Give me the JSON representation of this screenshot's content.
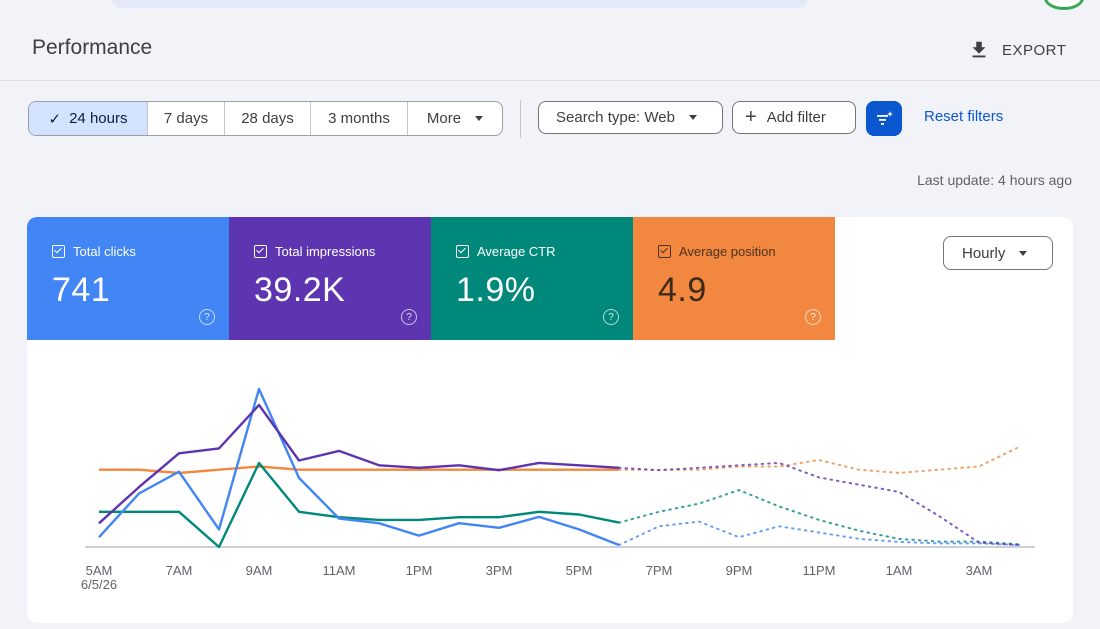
{
  "header": {
    "title": "Performance",
    "export_label": "EXPORT"
  },
  "date_ranges": [
    {
      "label": "24 hours",
      "active": true
    },
    {
      "label": "7 days",
      "active": false
    },
    {
      "label": "28 days",
      "active": false
    },
    {
      "label": "3 months",
      "active": false
    },
    {
      "label": "More",
      "active": false
    }
  ],
  "search_type_label": "Search type: Web",
  "add_filter_label": "Add filter",
  "reset_filters_label": "Reset filters",
  "last_update": "Last update: 4 hours ago",
  "granularity": "Hourly",
  "metrics": [
    {
      "label": "Total clicks",
      "value": "741",
      "color": "#4285f4"
    },
    {
      "label": "Total impressions",
      "value": "39.2K",
      "color": "#5e35b1"
    },
    {
      "label": "Average CTR",
      "value": "1.9%",
      "color": "#00897b"
    },
    {
      "label": "Average position",
      "value": "4.9",
      "color": "#f2873f"
    }
  ],
  "chart_data": {
    "type": "line",
    "x": [
      "5AM",
      "6AM",
      "7AM",
      "8AM",
      "9AM",
      "10AM",
      "11AM",
      "12PM",
      "1PM",
      "2PM",
      "3PM",
      "4PM",
      "5PM",
      "6PM",
      "7PM",
      "8PM",
      "9PM",
      "10PM",
      "11PM",
      "12AM",
      "1AM",
      "2AM",
      "3AM",
      "4AM"
    ],
    "x_tick_labels": [
      "5AM",
      "7AM",
      "9AM",
      "11AM",
      "1PM",
      "3PM",
      "5PM",
      "7PM",
      "9PM",
      "11PM",
      "1AM",
      "3AM"
    ],
    "x_sub_label": "6/5/26",
    "solid_points": 14,
    "y_axis_shown": false,
    "series": [
      {
        "metric": "Total clicks",
        "color": "#4285f4",
        "values": [
          5,
          33,
          47,
          10,
          100,
          43,
          17,
          14,
          6,
          14,
          11,
          18,
          10,
          0,
          12,
          15,
          5,
          12,
          8,
          4,
          2,
          1,
          1,
          0
        ]
      },
      {
        "metric": "Total impressions",
        "color": "#5e35b1",
        "values": [
          9,
          24,
          38,
          40,
          58,
          35,
          39,
          33,
          32,
          33,
          31,
          34,
          33,
          32,
          31,
          32,
          33,
          34,
          28,
          25,
          22,
          12,
          1,
          0
        ]
      },
      {
        "metric": "Average CTR",
        "color": "#00897b",
        "values": [
          12,
          12,
          12,
          -1,
          30,
          12,
          10,
          9,
          9,
          10,
          10,
          12,
          11,
          8,
          12,
          15,
          20,
          14,
          9,
          5,
          2,
          1,
          1,
          0
        ]
      },
      {
        "metric": "Average position",
        "color": "#f2873f",
        "values": [
          4.9,
          4.9,
          4.8,
          4.9,
          5.0,
          4.9,
          4.9,
          4.9,
          4.9,
          4.9,
          4.9,
          4.9,
          4.9,
          4.9,
          4.9,
          4.9,
          5.0,
          5.0,
          5.2,
          4.9,
          4.8,
          4.9,
          5.0,
          5.6
        ]
      }
    ]
  }
}
